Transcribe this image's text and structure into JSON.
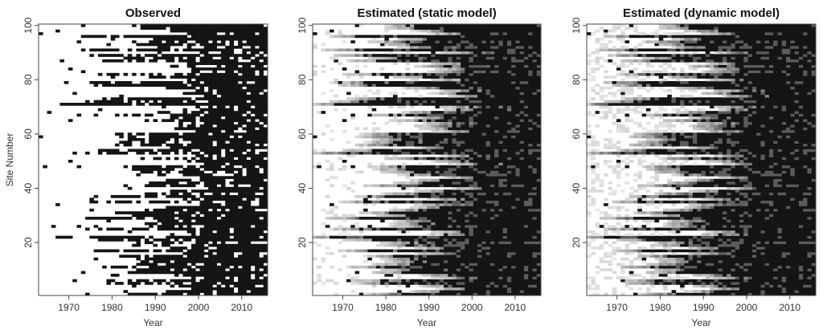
{
  "chart_data": [
    {
      "type": "heatmap",
      "title": "Observed",
      "xlabel": "Year",
      "ylabel": "Site Number",
      "x_ticks": [
        1970,
        1980,
        1990,
        2000,
        2010
      ],
      "y_ticks": [
        20,
        40,
        60,
        80,
        100
      ],
      "x_range": [
        1963,
        2016
      ],
      "y_range": [
        1,
        100
      ],
      "values": [
        0,
        1
      ],
      "colors": {
        "low": "#ffffff",
        "high": "#141414"
      },
      "grid": false,
      "legend": "none"
    },
    {
      "type": "heatmap",
      "title": "Estimated (static model)",
      "xlabel": "Year",
      "ylabel": "",
      "x_ticks": [
        1970,
        1980,
        1990,
        2000,
        2010
      ],
      "y_ticks": [
        20,
        40,
        60,
        80,
        100
      ],
      "x_range": [
        1963,
        2016
      ],
      "y_range": [
        1,
        100
      ],
      "values": [
        0,
        1
      ],
      "colors": {
        "low": "#ffffff",
        "high": "#141414"
      },
      "grid": false,
      "legend": "none"
    },
    {
      "type": "heatmap",
      "title": "Estimated (dynamic model)",
      "xlabel": "Year",
      "ylabel": "",
      "x_ticks": [
        1970,
        1980,
        1990,
        2000,
        2010
      ],
      "y_ticks": [
        20,
        40,
        60,
        80,
        100
      ],
      "x_range": [
        1963,
        2016
      ],
      "y_range": [
        1,
        100
      ],
      "values": [
        0,
        1
      ],
      "colors": {
        "low": "#ffffff",
        "high": "#141414"
      },
      "grid": false,
      "legend": "none"
    }
  ]
}
